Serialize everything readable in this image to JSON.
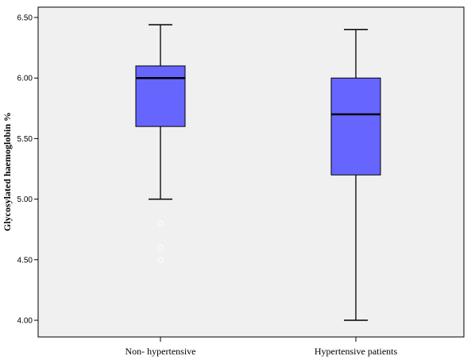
{
  "chart_data": {
    "type": "box",
    "ylabel": "Glycosylated haemoglobin %",
    "ylim": [
      3.9,
      6.6
    ],
    "yticks": [
      "4.00",
      "4.50",
      "5.00",
      "5.50",
      "6.00",
      "6.50"
    ],
    "ytick_values": [
      4.0,
      4.5,
      5.0,
      5.5,
      6.0,
      6.5
    ],
    "grid": false,
    "box_color": "#6666FF",
    "plot_background": "#F0F0F0",
    "outlier_color": "#FFFFFF",
    "categories": [
      "Non- hypertensive",
      "Hypertensive patients"
    ],
    "boxes": [
      {
        "min": 5.0,
        "q1": 5.6,
        "median": 6.0,
        "q3": 6.1,
        "max": 6.44,
        "outliers": [
          4.8,
          4.6,
          4.5
        ]
      },
      {
        "min": 4.0,
        "q1": 5.2,
        "median": 5.7,
        "q3": 6.0,
        "max": 6.4,
        "outliers": []
      }
    ]
  }
}
